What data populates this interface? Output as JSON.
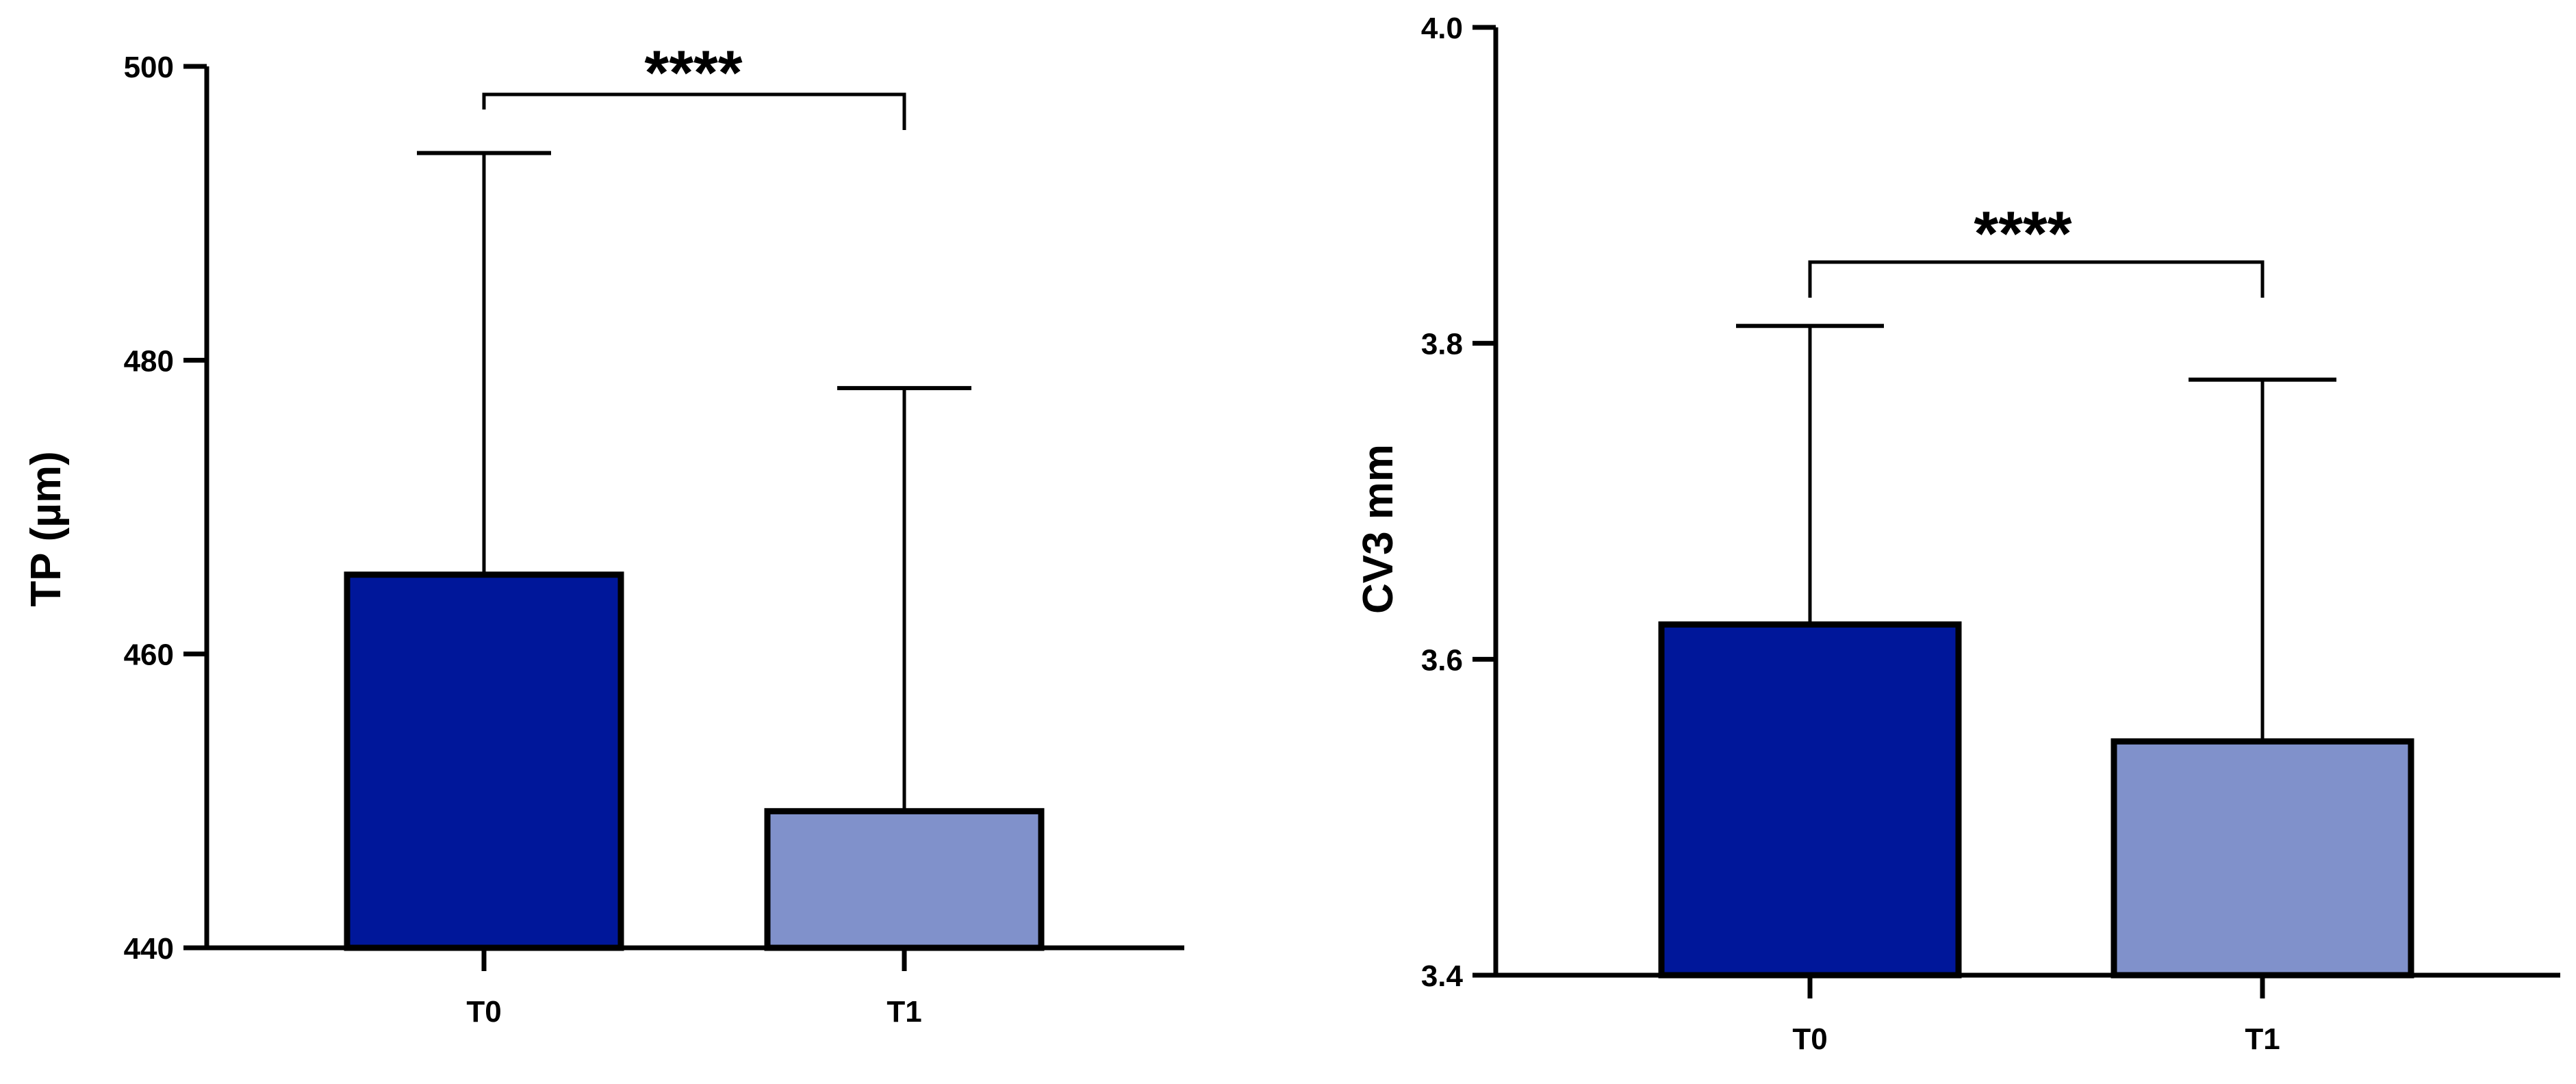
{
  "chart_data": [
    {
      "type": "bar",
      "title": "",
      "xlabel": "",
      "ylabel": "TP (µm)",
      "ylim": [
        440,
        500
      ],
      "yticks": [
        440,
        460,
        480,
        500
      ],
      "categories": [
        "T0",
        "T1"
      ],
      "values": [
        465.4,
        449.3
      ],
      "error_upper": [
        494.1,
        478.1
      ],
      "colors": [
        "#00179A",
        "#8091CB"
      ],
      "grid": false,
      "annotations": [
        {
          "between": [
            "T0",
            "T1"
          ],
          "text": "****"
        }
      ]
    },
    {
      "type": "bar",
      "title": "",
      "xlabel": "",
      "ylabel": "CV3 mm",
      "ylim": [
        3.4,
        4.0
      ],
      "yticks": [
        3.4,
        3.6,
        3.8,
        4.0
      ],
      "categories": [
        "T0",
        "T1"
      ],
      "values": [
        3.622,
        3.548
      ],
      "error_upper": [
        3.811,
        3.777
      ],
      "colors": [
        "#00179A",
        "#8091CB"
      ],
      "grid": false,
      "annotations": [
        {
          "between": [
            "T0",
            "T1"
          ],
          "text": "****"
        }
      ]
    }
  ]
}
